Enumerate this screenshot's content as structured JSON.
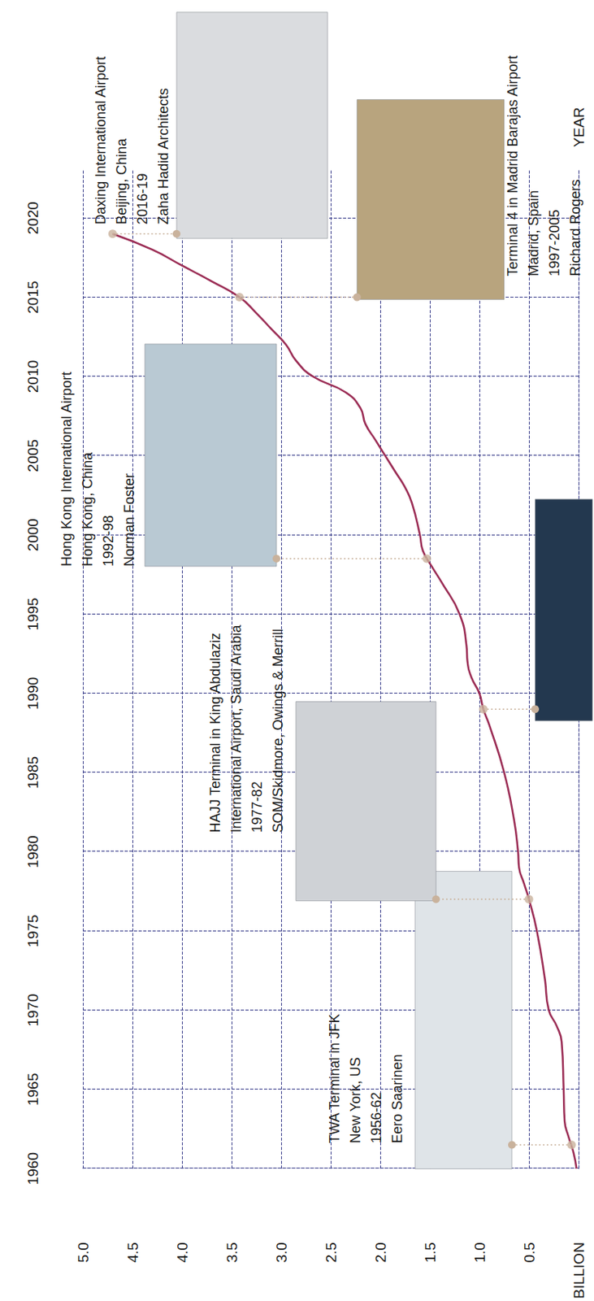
{
  "chart_data": {
    "type": "line",
    "x_label": "YEAR",
    "y_label": "BILLION",
    "color": "#9b2d55",
    "grid": true,
    "x": [
      1960,
      1961,
      1962,
      1963,
      1965,
      1968,
      1969,
      1970,
      1972,
      1975,
      1977,
      1978,
      1979,
      1980,
      1982,
      1985,
      1988,
      1989,
      1990,
      1991,
      1992,
      1993,
      1995,
      1997,
      1998,
      1999,
      2000,
      2002,
      2003,
      2004,
      2005,
      2006,
      2007,
      2008,
      2009,
      2010,
      2011,
      2012,
      2013,
      2014,
      2015,
      2016,
      2017,
      2018,
      2019
    ],
    "values": [
      0.02,
      0.05,
      0.1,
      0.14,
      0.15,
      0.17,
      0.22,
      0.3,
      0.34,
      0.42,
      0.5,
      0.55,
      0.6,
      0.61,
      0.65,
      0.75,
      0.9,
      0.96,
      1.0,
      1.08,
      1.12,
      1.13,
      1.2,
      1.38,
      1.48,
      1.57,
      1.6,
      1.68,
      1.75,
      1.85,
      1.95,
      2.05,
      2.15,
      2.2,
      2.35,
      2.68,
      2.85,
      2.95,
      3.1,
      3.25,
      3.42,
      3.7,
      4.0,
      4.3,
      4.7
    ],
    "xlim": [
      1960,
      2023
    ],
    "xticks": [
      1960,
      1965,
      1970,
      1975,
      1980,
      1985,
      1990,
      1995,
      2000,
      2005,
      2010,
      2015,
      2020
    ],
    "ylim": [
      0,
      5
    ],
    "yticks": [
      0.5,
      {
        "value": 1,
        "label": "1.0"
      },
      1.5,
      {
        "value": 2,
        "label": "2.0"
      },
      2.5,
      {
        "value": 3,
        "label": "3.0"
      },
      3.5,
      {
        "value": 4,
        "label": "4.0"
      },
      4.5,
      {
        "value": 5,
        "label": "5.0"
      }
    ],
    "annotations": [
      {
        "x": 1961.5,
        "y": 0.07,
        "text": [
          "TWA Terminal in JFK",
          "New York, US",
          "1956-62",
          "Eero Saarinen"
        ]
      },
      {
        "x": 1977,
        "y": 0.5,
        "text": [
          "HAJJ Terminal in King Abdulaziz",
          "International Airport, Saudi Arabia",
          "1977-82",
          "SOM/Skidmore, Owings & Merrill"
        ]
      },
      {
        "x": 1989,
        "y": 0.96
      },
      {
        "x": 1998.5,
        "y": 1.53,
        "text": [
          "Hong Kong International Airport",
          "Hong Kong, China",
          "1992-98",
          "Norman Foster"
        ]
      },
      {
        "x": 2015,
        "y": 3.42,
        "text": [
          "Terminal 4 in Madrid Barajas Airport",
          "Madrid, Spain",
          "1997-2005",
          "Richard Rogers"
        ]
      },
      {
        "x": 2019,
        "y": 4.7,
        "text": [
          "Daxing International Airport",
          "Beijing, China",
          "2016-19",
          "Zaha Hadid Architects"
        ]
      }
    ]
  }
}
